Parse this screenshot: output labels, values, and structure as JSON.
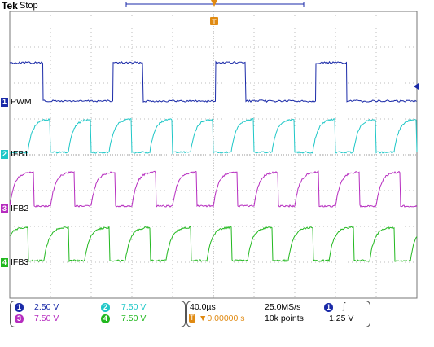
{
  "header": {
    "brand": "Tek",
    "status": "Stop"
  },
  "colors": {
    "ch1": "#1a2aa8",
    "ch2": "#1fc7c7",
    "ch3": "#b62cbf",
    "ch4": "#22b81f",
    "trigger": "#e08a12",
    "grid": "#bdbdbd"
  },
  "channels": [
    {
      "num": "1",
      "label": "PWM"
    },
    {
      "num": "2",
      "label": "IFB1"
    },
    {
      "num": "3",
      "label": "IFB2"
    },
    {
      "num": "4",
      "label": "IFB3"
    }
  ],
  "settings": {
    "ch1_scale": "2.50 V",
    "ch2_scale": "7.50 V",
    "ch3_scale": "7.50 V",
    "ch4_scale": "7.50 V",
    "timebase": "40.0µs",
    "trigger_pos": "▼0.00000 s",
    "sample_rate": "25.0MS/s",
    "record_length": "10k points",
    "trigger_chip": "1",
    "trigger_slope": "∫",
    "trigger_level": "1.25 V"
  }
}
